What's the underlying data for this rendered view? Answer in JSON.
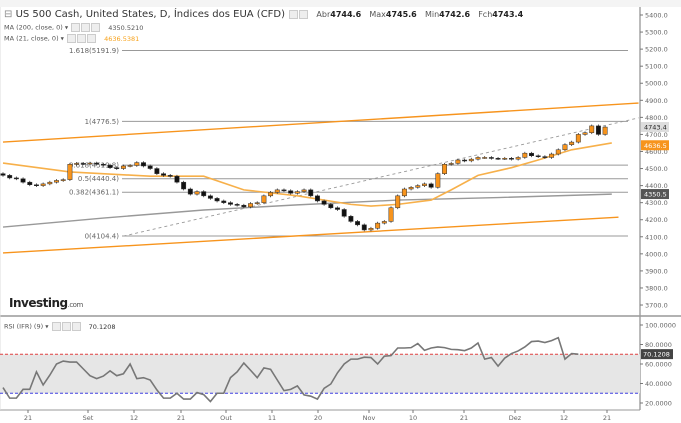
{
  "header": {
    "title": "US 500 Cash, United States, D, Índices dos EUA (CFD)",
    "open_label": "Abr",
    "open": "4744.6",
    "high_label": "Max",
    "high": "4745.6",
    "low_label": "Min",
    "low": "4742.6",
    "close_label": "Fch",
    "close": "4743.4"
  },
  "indicators": [
    {
      "label": "MA (200, close, 0)",
      "value": "4350.5210",
      "color": "#888888"
    },
    {
      "label": "MA (21, close, 0)",
      "value": "4636.5381",
      "color": "#f7a21b"
    }
  ],
  "rsi": {
    "label": "RSI (IFR) (9)",
    "value": "70.1208",
    "tag": "70.1208"
  },
  "logo": {
    "main": "Investing",
    "suffix": ".com"
  },
  "colors": {
    "up": "#f7941d",
    "down": "#111111",
    "ma21": "#f7b04a",
    "ma200": "#999999",
    "channel": "#f7941d",
    "overbought": "#e04040",
    "oversold": "#4040e0"
  },
  "chart_data": {
    "type": "candlestick",
    "ylim": [
      3650,
      5450
    ],
    "y_ticks": [
      "5400.0",
      "5300.0",
      "5200.0",
      "5100.0",
      "5000.0",
      "4900.0",
      "4800.0",
      "4700.0",
      "4600.0",
      "4500.0",
      "4400.0",
      "4300.0",
      "4200.0",
      "4100.0",
      "4000.0",
      "3900.0",
      "3800.0",
      "3700.0"
    ],
    "x_ticks": [
      "21",
      "Set",
      "12",
      "21",
      "Out",
      "11",
      "20",
      "Nov",
      "10",
      "21",
      "Dez",
      "12",
      "21"
    ],
    "closes": [
      4460,
      4445,
      4440,
      4420,
      4405,
      4400,
      4410,
      4420,
      4430,
      4435,
      4525,
      4530,
      4528,
      4532,
      4525,
      4520,
      4505,
      4500,
      4515,
      4518,
      4535,
      4515,
      4500,
      4470,
      4460,
      4455,
      4420,
      4380,
      4350,
      4365,
      4340,
      4325,
      4310,
      4300,
      4290,
      4285,
      4275,
      4295,
      4300,
      4340,
      4360,
      4375,
      4370,
      4355,
      4365,
      4375,
      4340,
      4310,
      4290,
      4270,
      4260,
      4220,
      4190,
      4170,
      4140,
      4150,
      4180,
      4190,
      4270,
      4340,
      4380,
      4390,
      4400,
      4410,
      4390,
      4470,
      4525,
      4530,
      4550,
      4545,
      4555,
      4565,
      4565,
      4560,
      4558,
      4560,
      4555,
      4565,
      4590,
      4575,
      4570,
      4565,
      4585,
      4610,
      4640,
      4655,
      4700,
      4710,
      4750,
      4700,
      4743
    ],
    "ma21": [
      [
        0,
        4532
      ],
      [
        10,
        4480
      ],
      [
        22,
        4455
      ],
      [
        30,
        4455
      ],
      [
        36,
        4375
      ],
      [
        44,
        4340
      ],
      [
        52,
        4290
      ],
      [
        55,
        4280
      ],
      [
        59,
        4290
      ],
      [
        64,
        4315
      ],
      [
        67,
        4375
      ],
      [
        71,
        4460
      ],
      [
        76,
        4505
      ],
      [
        80,
        4550
      ],
      [
        85,
        4610
      ],
      [
        91,
        4650
      ]
    ],
    "ma200": [
      [
        0,
        4157
      ],
      [
        15,
        4210
      ],
      [
        30,
        4257
      ],
      [
        44,
        4287
      ],
      [
        59,
        4315
      ],
      [
        74,
        4330
      ],
      [
        91,
        4350
      ]
    ],
    "fibonacci": [
      {
        "label": "1.618(5191.9)",
        "value": 5191.9
      },
      {
        "label": "1(4776.5)",
        "value": 4776.5
      },
      {
        "label": "0.618(4519.8)",
        "value": 4519.8
      },
      {
        "label": "0.5(4440.4)",
        "value": 4440.4
      },
      {
        "label": "0.382(4361.1)",
        "value": 4361.1
      },
      {
        "label": "0(4104.4)",
        "value": 4104.4
      }
    ],
    "channel_upper": [
      [
        0,
        4655
      ],
      [
        95,
        4884
      ]
    ],
    "channel_lower": [
      [
        0,
        4005
      ],
      [
        92,
        4215
      ]
    ],
    "trendline": [
      [
        18,
        4104
      ],
      [
        95,
        4797
      ]
    ],
    "price_tags": [
      {
        "label": "4743.4",
        "value": 4743.4,
        "kind": "last"
      },
      {
        "label": "4636.5",
        "value": 4636.5,
        "kind": "ma21"
      },
      {
        "label": "4350.5",
        "value": 4350.5,
        "kind": "ma200"
      }
    ],
    "rsi_series": [
      35.8,
      25,
      25,
      34,
      34,
      52,
      38.5,
      48.6,
      60,
      63,
      62,
      62,
      55,
      48,
      45,
      47.6,
      53,
      48,
      50,
      60,
      45,
      46,
      43.6,
      33.4,
      25,
      25,
      30,
      24,
      24,
      30.7,
      28.6,
      21.5,
      30,
      30,
      46,
      52,
      61,
      53.6,
      46,
      56,
      54.5,
      43.6,
      32.7,
      34,
      37.5,
      28.3,
      27,
      24,
      35,
      39.5,
      51,
      60,
      65,
      65,
      67,
      66.6,
      60,
      68,
      68.6,
      76.4,
      76.4,
      76.8,
      81,
      74,
      76.4,
      77.5,
      76.8,
      75,
      74.7,
      73.7,
      76.4,
      81.5,
      65,
      66.6,
      57.8,
      66,
      70.7,
      73.4,
      77.5,
      83,
      83.5,
      82,
      84,
      87,
      65,
      70.7,
      70.1
    ],
    "rsi_ylim": [
      15,
      105
    ],
    "rsi_ticks": [
      "100.0000",
      "80.0000",
      "60.0000",
      "40.0000",
      "20.0000"
    ],
    "rsi_levels": [
      70,
      30
    ]
  }
}
